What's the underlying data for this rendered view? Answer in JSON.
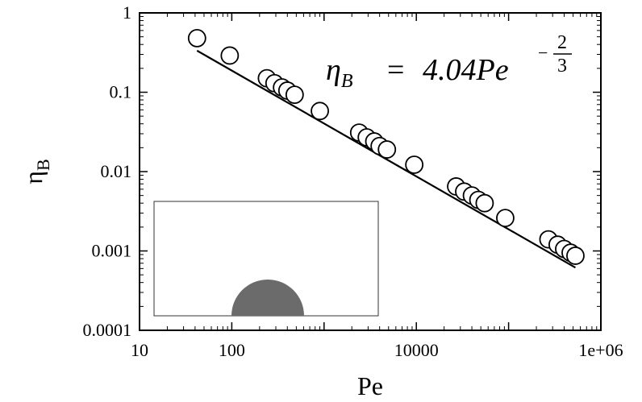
{
  "chart_data": {
    "type": "scatter",
    "xlabel": "Pe",
    "ylabel": "η",
    "ylabel_subscript": "B",
    "xscale": "log",
    "yscale": "log",
    "xlim": [
      10,
      1000000
    ],
    "ylim": [
      0.0001,
      1
    ],
    "x_ticks": [
      10,
      100,
      10000,
      1000000
    ],
    "x_tick_labels": [
      "10",
      "100",
      "10000",
      "1e+06"
    ],
    "y_ticks": [
      0.0001,
      0.001,
      0.01,
      0.1,
      1
    ],
    "y_tick_labels": [
      "0.0001",
      "0.001",
      "0.01",
      "0.1",
      "1"
    ],
    "grid": false,
    "series": [
      {
        "marker": "open-circle",
        "x": [
          42,
          95,
          240,
          290,
          350,
          400,
          480,
          900,
          2400,
          2900,
          3500,
          4000,
          4800,
          9500,
          27000,
          33000,
          40000,
          47000,
          55000,
          92000,
          270000,
          340000,
          400000,
          470000,
          530000
        ],
        "y": [
          0.48,
          0.29,
          0.15,
          0.13,
          0.115,
          0.105,
          0.093,
          0.058,
          0.031,
          0.027,
          0.024,
          0.021,
          0.019,
          0.0122,
          0.0065,
          0.0056,
          0.005,
          0.0044,
          0.004,
          0.0026,
          0.0014,
          0.0012,
          0.00106,
          0.00095,
          0.00087
        ]
      }
    ],
    "fit_line": {
      "coefficient": 4.04,
      "exponent": -0.6667,
      "x_range": [
        42,
        530000
      ]
    },
    "annotation": {
      "lhs": "η",
      "lhs_sub": "B",
      "equals": "=",
      "coef_text": "4.04Pe",
      "exp_sign": "−",
      "exp_num": "2",
      "exp_den": "3"
    }
  },
  "colors": {
    "axis": "#000000",
    "inset_fill": "#6b6b6b",
    "inset_border": "#333333"
  }
}
